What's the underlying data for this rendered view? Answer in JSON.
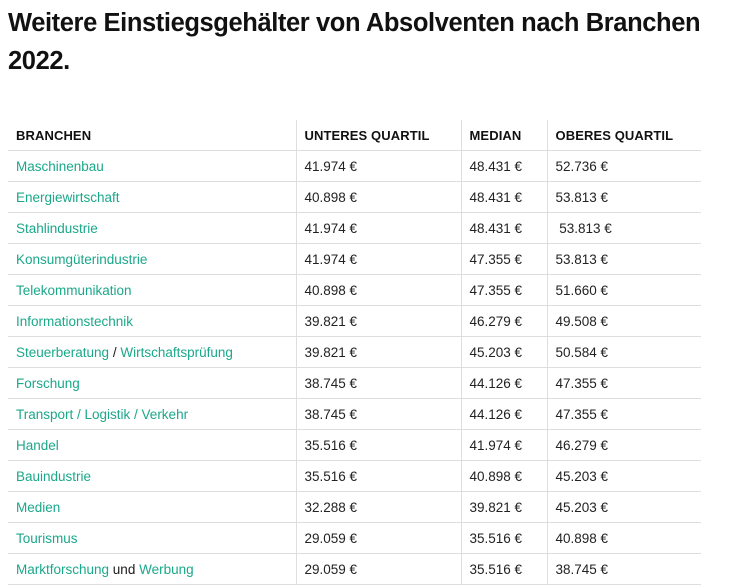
{
  "title": "Weitere Einstiegsgehälter von Absolventen nach Branchen 2022.",
  "colors": {
    "link": "#1ba88a",
    "text": "#1a1a1a",
    "border": "#dedede"
  },
  "table": {
    "headers": [
      "BRANCHEN",
      "UNTERES QUARTIL",
      "MEDIAN",
      "OBERES QUARTIL"
    ],
    "rows": [
      {
        "branche": [
          {
            "text": "Maschinenbau",
            "link": true
          }
        ],
        "unteres": "41.974 €",
        "median": "48.431 €",
        "oberes": "52.736 €"
      },
      {
        "branche": [
          {
            "text": "Energiewirtschaft",
            "link": true
          }
        ],
        "unteres": "40.898 €",
        "median": "48.431 €",
        "oberes": "53.813 €"
      },
      {
        "branche": [
          {
            "text": "Stahlindustrie",
            "link": true
          }
        ],
        "unteres": "41.974 €",
        "median": "48.431 €",
        "oberes": " 53.813 €"
      },
      {
        "branche": [
          {
            "text": "Konsumgüterindustrie",
            "link": true
          }
        ],
        "unteres": "41.974 €",
        "median": "47.355 €",
        "oberes": "53.813 €"
      },
      {
        "branche": [
          {
            "text": "Telekommunikation",
            "link": true
          }
        ],
        "unteres": "40.898 €",
        "median": "47.355 €",
        "oberes": "51.660 €"
      },
      {
        "branche": [
          {
            "text": "Informationstechnik",
            "link": true
          }
        ],
        "unteres": "39.821 €",
        "median": "46.279 €",
        "oberes": "49.508 €"
      },
      {
        "branche": [
          {
            "text": "Steuerberatung",
            "link": true
          },
          {
            "text": " / ",
            "link": false
          },
          {
            "text": "Wirtschaftsprüfung",
            "link": true
          }
        ],
        "unteres": "39.821 €",
        "median": "45.203 €",
        "oberes": "50.584 €"
      },
      {
        "branche": [
          {
            "text": "Forschung",
            "link": true
          }
        ],
        "unteres": "38.745 €",
        "median": "44.126 €",
        "oberes": "47.355 €"
      },
      {
        "branche": [
          {
            "text": "Transport / Logistik / Verkehr",
            "link": true
          }
        ],
        "unteres": "38.745 €",
        "median": "44.126 €",
        "oberes": "47.355 €"
      },
      {
        "branche": [
          {
            "text": "Handel",
            "link": true
          }
        ],
        "unteres": "35.516 €",
        "median": "41.974 €",
        "oberes": "46.279 €"
      },
      {
        "branche": [
          {
            "text": "Bauindustrie",
            "link": true
          }
        ],
        "unteres": "35.516 €",
        "median": "40.898 €",
        "oberes": "45.203 €"
      },
      {
        "branche": [
          {
            "text": "Medien",
            "link": true
          }
        ],
        "unteres": "32.288 €",
        "median": "39.821 €",
        "oberes": "45.203 €"
      },
      {
        "branche": [
          {
            "text": "Tourismus",
            "link": true
          }
        ],
        "unteres": "29.059 €",
        "median": "35.516 €",
        "oberes": "40.898 €"
      },
      {
        "branche": [
          {
            "text": "Marktforschung",
            "link": true
          },
          {
            "text": " und ",
            "link": false
          },
          {
            "text": "Werbung",
            "link": true
          }
        ],
        "unteres": "29.059 €",
        "median": "35.516 €",
        "oberes": "38.745 €"
      }
    ]
  }
}
